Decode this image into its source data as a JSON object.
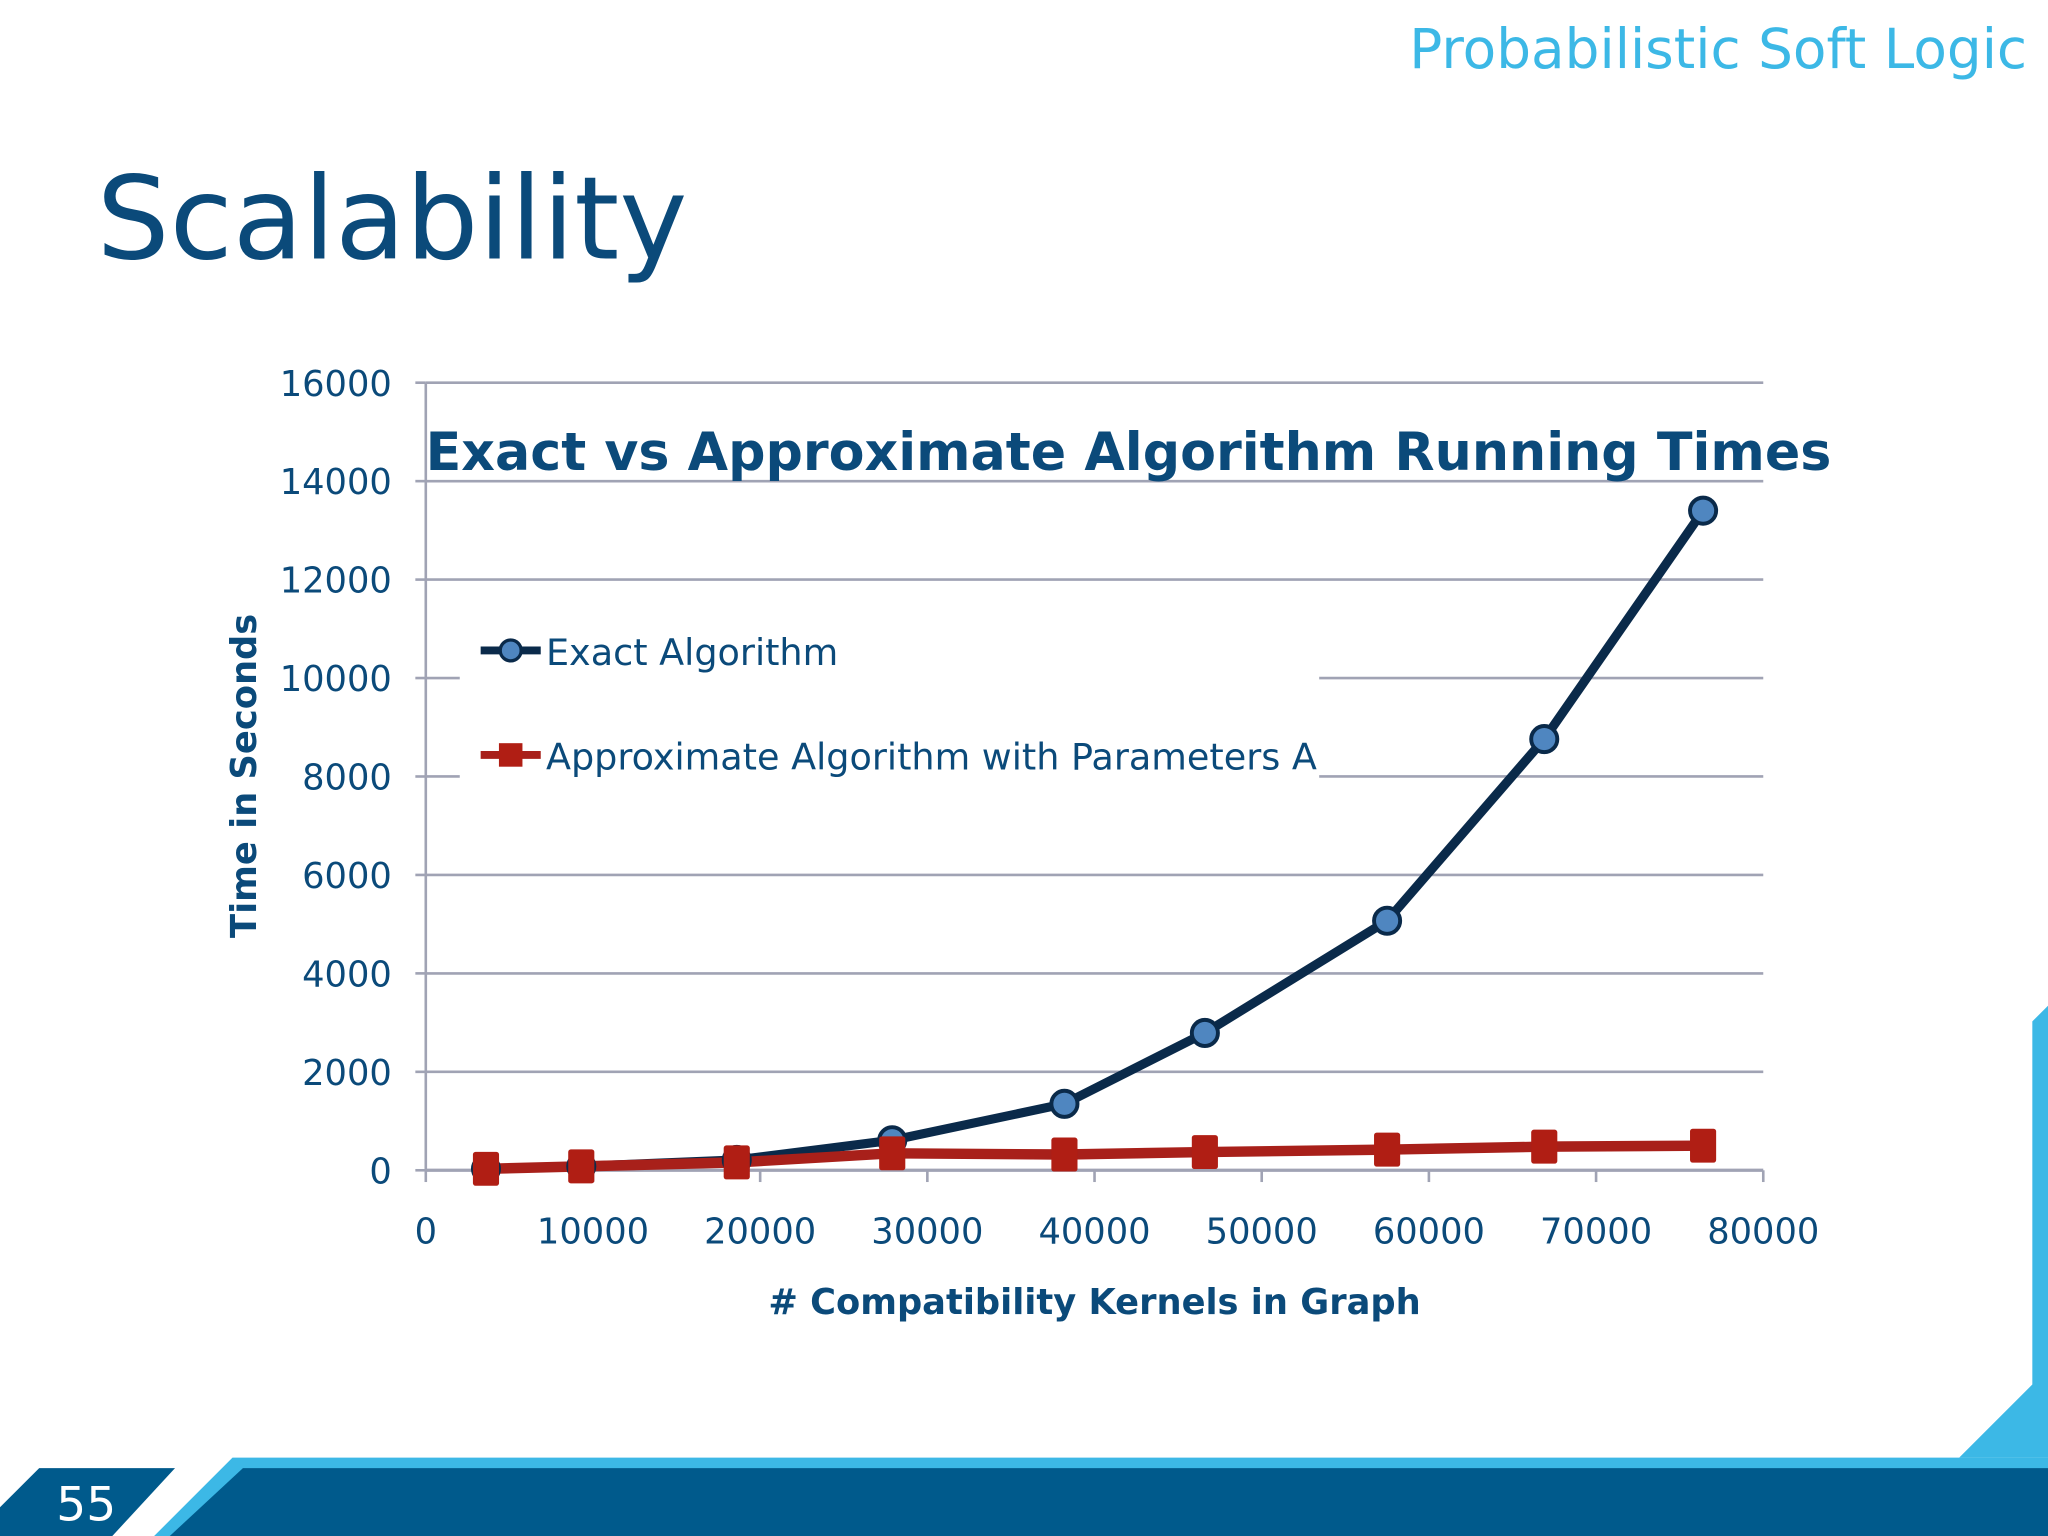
{
  "header": {
    "deck_title": "Probabilistic Soft Logic",
    "slide_title": "Scalability"
  },
  "footer": {
    "slide_number": "55"
  },
  "colors": {
    "accent_light": "#3cb8e6",
    "title_blue": "#0b4a7a",
    "band_blue": "#005a8c",
    "exact_series": "#0a2a4a",
    "exact_marker": "#4f86c0",
    "approx_series": "#a8201a"
  },
  "chart_data": {
    "type": "line",
    "title": "Exact vs Approximate Algorithm Running Times",
    "xlabel": "# Compatibility Kernels in Graph",
    "ylabel": "Time in Seconds",
    "xlim": [
      0,
      80000
    ],
    "ylim": [
      0,
      16000
    ],
    "xticks": [
      "0",
      "10000",
      "20000",
      "30000",
      "40000",
      "50000",
      "60000",
      "70000",
      "80000"
    ],
    "yticks": [
      "0",
      "2000",
      "4000",
      "6000",
      "8000",
      "10000",
      "12000",
      "14000",
      "16000"
    ],
    "grid": "horizontal",
    "legend_placement": "top-left",
    "x": [
      3600,
      9300,
      18600,
      27900,
      38200,
      46600,
      57500,
      66900,
      76400
    ],
    "series": [
      {
        "name": "Exact Algorithm",
        "marker": "circle",
        "values": [
          30,
          80,
          210,
          610,
          1350,
          2790,
          5070,
          8760,
          13400
        ]
      },
      {
        "name": "Approximate Algorithm with Parameters A",
        "marker": "square",
        "values": [
          30,
          80,
          160,
          345,
          320,
          370,
          420,
          480,
          500
        ]
      }
    ]
  }
}
